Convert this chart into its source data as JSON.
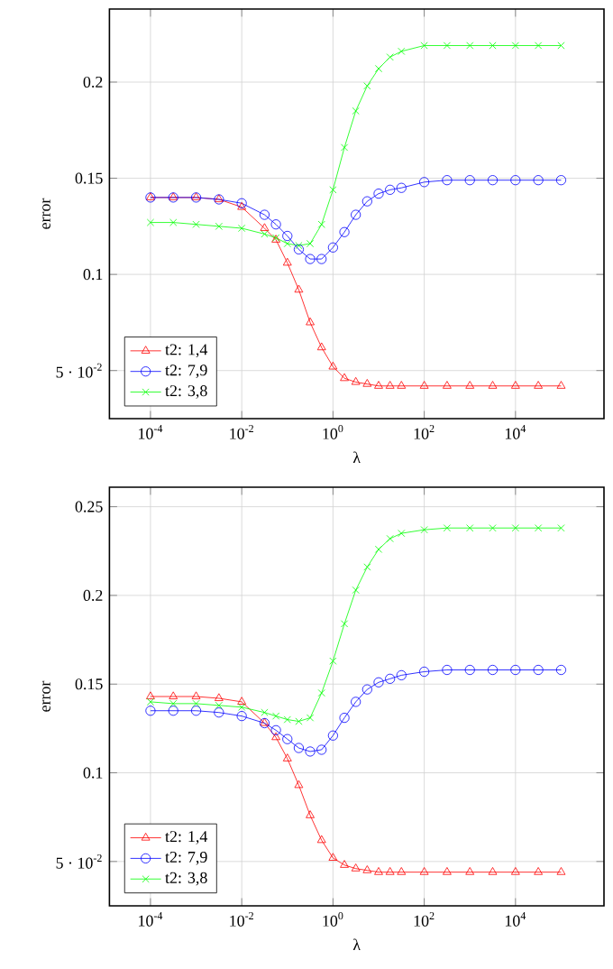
{
  "chart_data": [
    {
      "type": "line",
      "xlabel": "λ",
      "ylabel": "error",
      "log": "x",
      "grid": true,
      "legend": "bottom left",
      "line_style": "solid",
      "x": [
        0.0001,
        0.000316,
        0.001,
        0.00316,
        0.01,
        0.0316,
        0.0562,
        0.1,
        0.178,
        0.316,
        0.562,
        1,
        1.78,
        3.16,
        5.62,
        10,
        17.8,
        31.6,
        100,
        316,
        1000,
        3160,
        10000.0,
        31600.0,
        100000.0
      ],
      "xlim": [
        1.26e-05,
        870000.0
      ],
      "ylim": [
        0.025,
        0.238
      ],
      "xticks": [
        {
          "value": 0.0001,
          "label": "10$^{-4}$"
        },
        {
          "value": 0.01,
          "label": "10$^{-2}$"
        },
        {
          "value": 1,
          "label": "10$^{0}$"
        },
        {
          "value": 100,
          "label": "10$^{2}$"
        },
        {
          "value": 10000.0,
          "label": "10$^{4}$"
        }
      ],
      "yticks": [
        {
          "value": 0.05,
          "label": "5 · 10$^{-2}$"
        },
        0.1,
        0.15,
        0.2
      ],
      "series": [
        {
          "name": "t2: 1,4",
          "color": "#ff0000",
          "marker": "triangle",
          "values": [
            0.14,
            0.14,
            0.14,
            0.139,
            0.135,
            0.124,
            0.118,
            0.106,
            0.092,
            0.075,
            0.062,
            0.052,
            0.046,
            0.044,
            0.043,
            0.042,
            0.042,
            0.042,
            0.042,
            0.042,
            0.042,
            0.042,
            0.042,
            0.042,
            0.042
          ]
        },
        {
          "name": "t2: 7,9",
          "color": "#0000ff",
          "marker": "circle",
          "values": [
            0.14,
            0.14,
            0.14,
            0.139,
            0.137,
            0.131,
            0.126,
            0.12,
            0.113,
            0.108,
            0.108,
            0.114,
            0.122,
            0.131,
            0.138,
            0.142,
            0.144,
            0.145,
            0.148,
            0.149,
            0.149,
            0.149,
            0.149,
            0.149,
            0.149
          ]
        },
        {
          "name": "t2: 3,8",
          "color": "#00ff00",
          "marker": "cross",
          "values": [
            0.127,
            0.127,
            0.126,
            0.125,
            0.124,
            0.121,
            0.119,
            0.116,
            0.115,
            0.116,
            0.126,
            0.144,
            0.166,
            0.185,
            0.198,
            0.207,
            0.213,
            0.216,
            0.219,
            0.219,
            0.219,
            0.219,
            0.219,
            0.219,
            0.219
          ]
        }
      ]
    },
    {
      "type": "line",
      "xlabel": "λ",
      "ylabel": "error",
      "log": "x",
      "grid": true,
      "legend": "bottom left",
      "line_style": "solid",
      "x": [
        0.0001,
        0.000316,
        0.001,
        0.00316,
        0.01,
        0.0316,
        0.0562,
        0.1,
        0.178,
        0.316,
        0.562,
        1,
        1.78,
        3.16,
        5.62,
        10,
        17.8,
        31.6,
        100,
        316,
        1000,
        3160,
        10000.0,
        31600.0,
        100000.0
      ],
      "xlim": [
        1.26e-05,
        870000.0
      ],
      "ylim": [
        0.025,
        0.261
      ],
      "xticks": [
        {
          "value": 0.0001,
          "label": "10$^{-4}$"
        },
        {
          "value": 0.01,
          "label": "10$^{-2}$"
        },
        {
          "value": 1,
          "label": "10$^{0}$"
        },
        {
          "value": 100,
          "label": "10$^{2}$"
        },
        {
          "value": 10000.0,
          "label": "10$^{4}$"
        }
      ],
      "yticks": [
        {
          "value": 0.05,
          "label": "5 · 10$^{-2}$"
        },
        0.1,
        0.15,
        0.2,
        0.25
      ],
      "series": [
        {
          "name": "t2: 1,4",
          "color": "#ff0000",
          "marker": "triangle",
          "values": [
            0.143,
            0.143,
            0.143,
            0.142,
            0.14,
            0.128,
            0.12,
            0.108,
            0.093,
            0.076,
            0.062,
            0.052,
            0.048,
            0.046,
            0.045,
            0.044,
            0.044,
            0.044,
            0.044,
            0.044,
            0.044,
            0.044,
            0.044,
            0.044,
            0.044
          ]
        },
        {
          "name": "t2: 7,9",
          "color": "#0000ff",
          "marker": "circle",
          "values": [
            0.135,
            0.135,
            0.135,
            0.134,
            0.132,
            0.128,
            0.124,
            0.119,
            0.114,
            0.112,
            0.113,
            0.121,
            0.131,
            0.14,
            0.147,
            0.151,
            0.153,
            0.155,
            0.157,
            0.158,
            0.158,
            0.158,
            0.158,
            0.158,
            0.158
          ]
        },
        {
          "name": "t2: 3,8",
          "color": "#00ff00",
          "marker": "cross",
          "values": [
            0.14,
            0.139,
            0.139,
            0.138,
            0.137,
            0.134,
            0.132,
            0.13,
            0.129,
            0.131,
            0.145,
            0.163,
            0.184,
            0.203,
            0.216,
            0.226,
            0.232,
            0.235,
            0.237,
            0.238,
            0.238,
            0.238,
            0.238,
            0.238,
            0.238
          ]
        }
      ]
    }
  ]
}
